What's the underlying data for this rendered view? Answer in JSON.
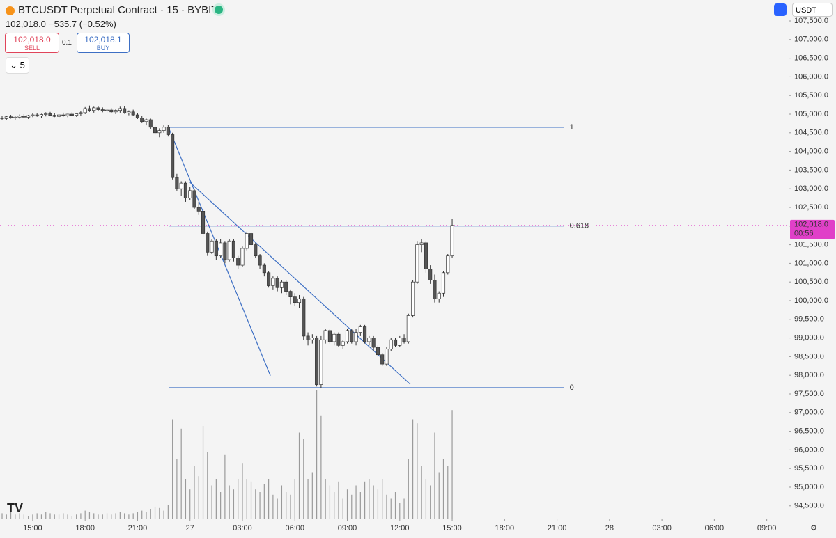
{
  "header": {
    "symbol": "BTCUSDT Perpetual Contract · 15 · BYBIT",
    "last_price": "102,018.0",
    "change": "−535.7 (−0.52%)",
    "sell_price": "102,018.0",
    "sell_label": "SELL",
    "spread": "0.1",
    "buy_price": "102,018.1",
    "buy_label": "BUY",
    "indicator_count": "5",
    "currency": "USDT"
  },
  "chart_data": {
    "type": "candlestick",
    "xlim": [
      -1.87,
      43.25
    ],
    "ylim": [
      94160,
      108060
    ],
    "xticks": [
      {
        "value": 0,
        "label": "15:00"
      },
      {
        "value": 3,
        "label": "18:00"
      },
      {
        "value": 6,
        "label": "21:00"
      },
      {
        "value": 9,
        "label": "27"
      },
      {
        "value": 12,
        "label": "03:00"
      },
      {
        "value": 15,
        "label": "06:00"
      },
      {
        "value": 18,
        "label": "09:00"
      },
      {
        "value": 21,
        "label": "12:00"
      },
      {
        "value": 24,
        "label": "15:00"
      },
      {
        "value": 27,
        "label": "18:00"
      },
      {
        "value": 30,
        "label": "21:00"
      },
      {
        "value": 33,
        "label": "28"
      },
      {
        "value": 36,
        "label": "03:00"
      },
      {
        "value": 39,
        "label": "06:00"
      },
      {
        "value": 42,
        "label": "09:00"
      }
    ],
    "yticks": [
      {
        "value": 94500,
        "label": "94,500.0"
      },
      {
        "value": 95000,
        "label": "95,000.0"
      },
      {
        "value": 95500,
        "label": "95,500.0"
      },
      {
        "value": 96000,
        "label": "96,000.0"
      },
      {
        "value": 96500,
        "label": "96,500.0"
      },
      {
        "value": 97000,
        "label": "97,000.0"
      },
      {
        "value": 97500,
        "label": "97,500.0"
      },
      {
        "value": 98000,
        "label": "98,000.0"
      },
      {
        "value": 98500,
        "label": "98,500.0"
      },
      {
        "value": 99000,
        "label": "99,000.0"
      },
      {
        "value": 99500,
        "label": "99,500.0"
      },
      {
        "value": 100000,
        "label": "100,000.0"
      },
      {
        "value": 100500,
        "label": "100,500.0"
      },
      {
        "value": 101000,
        "label": "101,000.0"
      },
      {
        "value": 101500,
        "label": "101,500.0"
      },
      {
        "value": 102000,
        "label": "102,000.0"
      },
      {
        "value": 102500,
        "label": "102,500.0"
      },
      {
        "value": 103000,
        "label": "103,000.0"
      },
      {
        "value": 103500,
        "label": "103,500.0"
      },
      {
        "value": 104000,
        "label": "104,000.0"
      },
      {
        "value": 104500,
        "label": "104,500.0"
      },
      {
        "value": 105000,
        "label": "105,000.0"
      },
      {
        "value": 105500,
        "label": "105,500.0"
      },
      {
        "value": 106000,
        "label": "106,000.0"
      },
      {
        "value": 106500,
        "label": "106,500.0"
      },
      {
        "value": 107000,
        "label": "107,000.0"
      },
      {
        "value": 107500,
        "label": "107,500.0"
      }
    ],
    "up_color": "#ffffff",
    "down_color": "#555555",
    "wick_color": "#333333",
    "candles": [
      [
        -1.75,
        104900,
        104960,
        104850,
        104880
      ],
      [
        -1.5,
        104880,
        104950,
        104840,
        104930
      ],
      [
        -1.25,
        104930,
        104980,
        104880,
        104900
      ],
      [
        -1,
        104900,
        104950,
        104850,
        104920
      ],
      [
        -0.75,
        104920,
        104990,
        104880,
        104950
      ],
      [
        -0.5,
        104950,
        105000,
        104900,
        104920
      ],
      [
        -0.25,
        104920,
        104980,
        104870,
        104960
      ],
      [
        0,
        104960,
        105020,
        104920,
        104980
      ],
      [
        0.25,
        104980,
        105030,
        104930,
        104950
      ],
      [
        0.5,
        104950,
        105010,
        104900,
        104990
      ],
      [
        0.75,
        104990,
        105050,
        104940,
        105010
      ],
      [
        1,
        105010,
        105060,
        104960,
        104970
      ],
      [
        1.25,
        104970,
        105020,
        104920,
        104940
      ],
      [
        1.5,
        104940,
        105000,
        104890,
        104980
      ],
      [
        1.75,
        104980,
        105040,
        104930,
        104960
      ],
      [
        2,
        104960,
        105010,
        104920,
        105000
      ],
      [
        2.25,
        105000,
        105050,
        104950,
        104970
      ],
      [
        2.5,
        104970,
        105030,
        104930,
        105010
      ],
      [
        2.75,
        105010,
        105080,
        104960,
        105040
      ],
      [
        3,
        105040,
        105190,
        105000,
        105150
      ],
      [
        3.25,
        105150,
        105230,
        105060,
        105100
      ],
      [
        3.5,
        105100,
        105200,
        105040,
        105170
      ],
      [
        3.75,
        105170,
        105220,
        105080,
        105120
      ],
      [
        4,
        105120,
        105180,
        105050,
        105090
      ],
      [
        4.25,
        105090,
        105150,
        105030,
        105110
      ],
      [
        4.5,
        105110,
        105160,
        105020,
        105060
      ],
      [
        4.75,
        105060,
        105140,
        105000,
        105100
      ],
      [
        5,
        105100,
        105200,
        105040,
        105150
      ],
      [
        5.25,
        105150,
        105210,
        105010,
        105030
      ],
      [
        5.5,
        105030,
        105100,
        104970,
        105060
      ],
      [
        5.75,
        105060,
        105120,
        104950,
        104980
      ],
      [
        6,
        104980,
        105020,
        104870,
        104900
      ],
      [
        6.25,
        104900,
        104960,
        104760,
        104800
      ],
      [
        6.5,
        104800,
        104880,
        104700,
        104850
      ],
      [
        6.75,
        104850,
        104880,
        104600,
        104650
      ],
      [
        7,
        104650,
        104700,
        104450,
        104500
      ],
      [
        7.25,
        104500,
        104620,
        104380,
        104560
      ],
      [
        7.5,
        104560,
        104700,
        104500,
        104650
      ],
      [
        7.75,
        104650,
        104720,
        104400,
        104450
      ],
      [
        8,
        104450,
        104500,
        103250,
        103300
      ],
      [
        8.25,
        103300,
        103400,
        102950,
        103000
      ],
      [
        8.5,
        103000,
        103200,
        102800,
        103150
      ],
      [
        8.75,
        103150,
        103200,
        102650,
        102750
      ],
      [
        9,
        102750,
        103050,
        102700,
        102950
      ],
      [
        9.25,
        102950,
        103000,
        102450,
        102500
      ],
      [
        9.5,
        102500,
        102650,
        102300,
        102400
      ],
      [
        9.75,
        102400,
        102450,
        101700,
        101800
      ],
      [
        10,
        101800,
        101850,
        101200,
        101300
      ],
      [
        10.25,
        101300,
        101650,
        101250,
        101600
      ],
      [
        10.5,
        101600,
        101650,
        101100,
        101200
      ],
      [
        10.75,
        101200,
        101650,
        101150,
        101550
      ],
      [
        11,
        101550,
        101600,
        101000,
        101100
      ],
      [
        11.25,
        101100,
        101650,
        101050,
        101600
      ],
      [
        11.5,
        101600,
        101650,
        101050,
        101150
      ],
      [
        11.75,
        101150,
        101200,
        100850,
        100950
      ],
      [
        12,
        100950,
        101450,
        100900,
        101400
      ],
      [
        12.25,
        101400,
        101850,
        101350,
        101800
      ],
      [
        12.5,
        101800,
        101850,
        101450,
        101500
      ],
      [
        12.75,
        101500,
        101550,
        101150,
        101200
      ],
      [
        13,
        101200,
        101250,
        100850,
        100950
      ],
      [
        13.25,
        100950,
        101000,
        100650,
        100750
      ],
      [
        13.5,
        100750,
        100800,
        100350,
        100400
      ],
      [
        13.75,
        100400,
        100650,
        100300,
        100600
      ],
      [
        14,
        100600,
        100650,
        100250,
        100350
      ],
      [
        14.25,
        100350,
        100550,
        100200,
        100500
      ],
      [
        14.5,
        100500,
        100550,
        100150,
        100250
      ],
      [
        14.75,
        100250,
        100300,
        99900,
        100100
      ],
      [
        15,
        100100,
        100200,
        99850,
        99950
      ],
      [
        15.25,
        99950,
        100150,
        99800,
        100050
      ],
      [
        15.5,
        100050,
        100100,
        98950,
        99050
      ],
      [
        15.75,
        99050,
        99150,
        98800,
        98950
      ],
      [
        16,
        98950,
        99100,
        98850,
        99000
      ],
      [
        16.25,
        99000,
        99050,
        97700,
        97750
      ],
      [
        16.5,
        97750,
        99050,
        97650,
        98950
      ],
      [
        16.75,
        98950,
        99250,
        98850,
        99200
      ],
      [
        17,
        99200,
        99250,
        98850,
        98900
      ],
      [
        17.25,
        98900,
        99150,
        98800,
        99100
      ],
      [
        17.5,
        99100,
        99150,
        98750,
        98800
      ],
      [
        17.75,
        98800,
        98950,
        98700,
        98900
      ],
      [
        18,
        98900,
        99250,
        98850,
        99200
      ],
      [
        18.25,
        99200,
        99250,
        98850,
        98900
      ],
      [
        18.5,
        98900,
        99250,
        98800,
        99150
      ],
      [
        18.75,
        99150,
        99350,
        99050,
        99300
      ],
      [
        19,
        99300,
        99350,
        98850,
        98900
      ],
      [
        19.25,
        98900,
        99050,
        98800,
        99000
      ],
      [
        19.5,
        99000,
        99050,
        98650,
        98750
      ],
      [
        19.75,
        98750,
        98800,
        98500,
        98550
      ],
      [
        20,
        98550,
        98600,
        98250,
        98300
      ],
      [
        20.25,
        98300,
        98750,
        98250,
        98700
      ],
      [
        20.5,
        98700,
        99000,
        98650,
        98950
      ],
      [
        20.75,
        98950,
        99000,
        98750,
        98800
      ],
      [
        21,
        98800,
        99050,
        98750,
        99000
      ],
      [
        21.25,
        99000,
        99100,
        98850,
        98900
      ],
      [
        21.5,
        98900,
        99650,
        98850,
        99600
      ],
      [
        21.75,
        99600,
        100550,
        99550,
        100500
      ],
      [
        22,
        100500,
        101600,
        100450,
        101500
      ],
      [
        22.25,
        101500,
        101650,
        101300,
        101550
      ],
      [
        22.5,
        101550,
        101600,
        100750,
        100850
      ],
      [
        22.75,
        100850,
        100950,
        100450,
        100550
      ],
      [
        23,
        100550,
        100700,
        99950,
        100050
      ],
      [
        23.25,
        100050,
        100250,
        99950,
        100200
      ],
      [
        23.5,
        100200,
        100800,
        100100,
        100750
      ],
      [
        23.75,
        100750,
        101250,
        100700,
        101200
      ],
      [
        24,
        101200,
        102200,
        101150,
        102018
      ]
    ],
    "volume": {
      "color": "#9a9a9a",
      "vlim": [
        0,
        100
      ],
      "values": [
        4,
        3,
        5,
        3,
        4,
        3,
        2,
        3,
        4,
        3,
        5,
        4,
        3,
        3,
        4,
        3,
        2,
        3,
        4,
        6,
        5,
        4,
        3,
        3,
        4,
        3,
        4,
        5,
        4,
        3,
        4,
        5,
        6,
        5,
        7,
        9,
        8,
        6,
        10,
        75,
        45,
        68,
        30,
        22,
        40,
        32,
        70,
        50,
        25,
        30,
        20,
        48,
        25,
        22,
        30,
        42,
        30,
        28,
        22,
        20,
        26,
        30,
        18,
        15,
        25,
        20,
        18,
        30,
        65,
        60,
        30,
        35,
        97,
        78,
        30,
        25,
        20,
        28,
        15,
        22,
        18,
        25,
        20,
        28,
        30,
        25,
        22,
        30,
        18,
        15,
        20,
        12,
        15,
        45,
        75,
        72,
        40,
        30,
        25,
        65,
        35,
        45,
        40,
        82
      ]
    },
    "fib": {
      "color": "#3d6fc4",
      "start": 7.8,
      "end": 30.4,
      "levels": [
        {
          "ratio": 1,
          "value": 104645
        },
        {
          "ratio": 0.618,
          "value": 102000
        },
        {
          "ratio": 0,
          "value": 97670
        }
      ]
    },
    "trendlines": [
      {
        "color": "#3d6fc4",
        "x": [
          7.8,
          13.6
        ],
        "y": [
          104610,
          97990
        ]
      },
      {
        "color": "#3d6fc4",
        "x": [
          9.0,
          21.6
        ],
        "y": [
          103170,
          97760
        ]
      }
    ],
    "price_tag": {
      "color": "#e040c8",
      "value": 102018,
      "label": "102,018.0",
      "countdown": "00:56"
    }
  }
}
